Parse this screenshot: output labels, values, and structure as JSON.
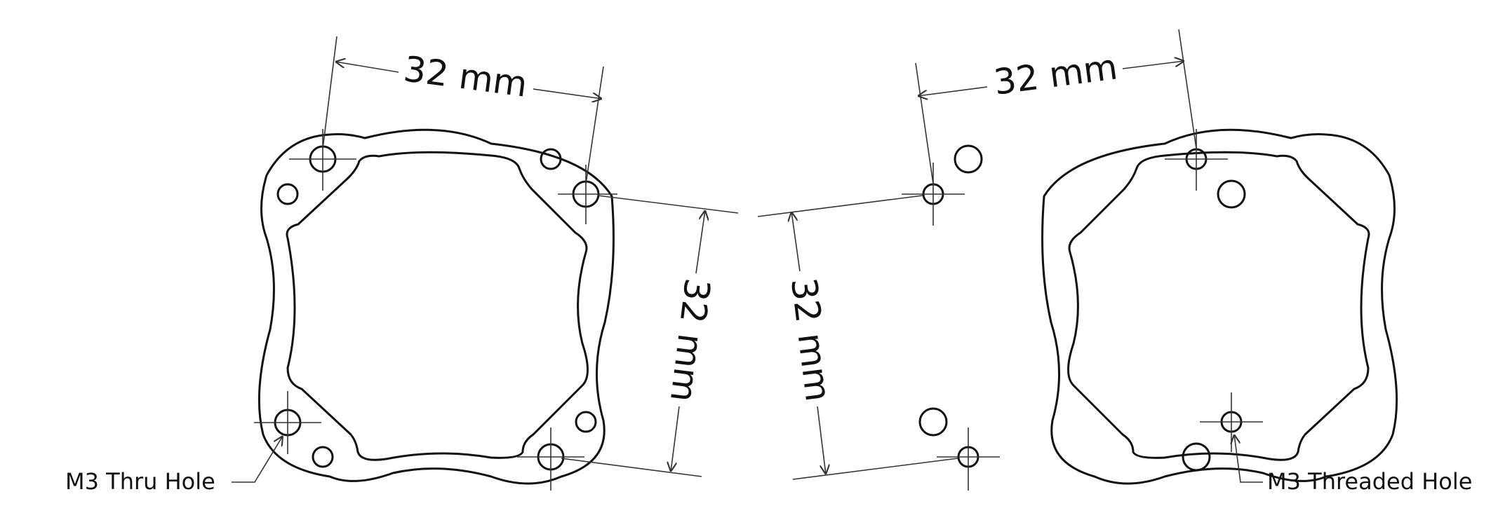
{
  "dimensions": {
    "left_horizontal": "32 mm",
    "left_vertical": "32 mm",
    "right_horizontal": "32 mm",
    "right_vertical": "32 mm"
  },
  "callouts": {
    "thru_hole": "M3 Thru Hole",
    "threaded_hole": "M3 Threaded Hole"
  },
  "colors": {
    "line": "#111111",
    "dimension_line": "#333333",
    "background": "#ffffff"
  }
}
